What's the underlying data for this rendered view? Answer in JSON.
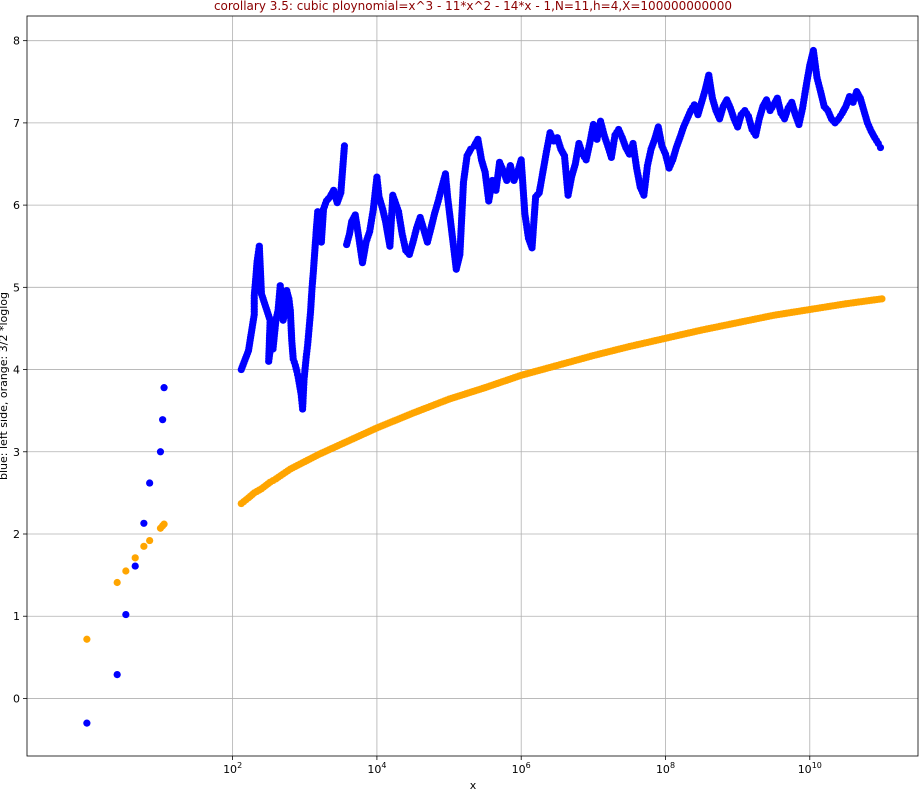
{
  "chart_data": {
    "type": "scatter",
    "title": "corollary 3.5: cubic ploynomial=x^3 - 11*x^2 - 14*x - 1,N=11,h=4,X=100000000000",
    "title_color": "#8b0000",
    "xlabel": "x",
    "ylabel": "blue: left side, orange: 3/2 *loglog",
    "xscale": "log",
    "xlim_log10": [
      -0.85,
      11.5
    ],
    "ylim": [
      -0.7,
      8.3
    ],
    "grid": true,
    "x_ticks": [
      {
        "log10": 2,
        "base": "10",
        "exp": "2"
      },
      {
        "log10": 4,
        "base": "10",
        "exp": "4"
      },
      {
        "log10": 6,
        "base": "10",
        "exp": "6"
      },
      {
        "log10": 8,
        "base": "10",
        "exp": "8"
      },
      {
        "log10": 10,
        "base": "10",
        "exp": "10"
      }
    ],
    "y_ticks": [
      "0",
      "1",
      "2",
      "3",
      "4",
      "5",
      "6",
      "7",
      "8"
    ],
    "series": [
      {
        "color": "#0000ff",
        "log10x_y": [
          [
            -0.02,
            -0.3
          ],
          [
            0.4,
            0.29
          ],
          [
            0.52,
            1.02
          ],
          [
            0.65,
            1.61
          ],
          [
            0.77,
            2.13
          ],
          [
            0.85,
            2.62
          ],
          [
            1.0,
            3.0
          ],
          [
            1.03,
            3.39
          ],
          [
            1.05,
            3.78
          ],
          [
            2.12,
            4.0
          ],
          [
            2.22,
            4.23
          ],
          [
            2.3,
            4.67
          ],
          [
            2.3,
            4.9
          ],
          [
            2.32,
            5.1
          ],
          [
            2.34,
            5.32
          ],
          [
            2.37,
            5.5
          ],
          [
            2.4,
            4.92
          ],
          [
            2.52,
            4.6
          ],
          [
            2.5,
            4.1
          ],
          [
            2.55,
            4.43
          ],
          [
            2.56,
            4.25
          ],
          [
            2.6,
            4.6
          ],
          [
            2.63,
            4.72
          ],
          [
            2.66,
            5.02
          ],
          [
            2.68,
            4.86
          ],
          [
            2.7,
            4.6
          ],
          [
            2.74,
            4.72
          ],
          [
            2.75,
            4.96
          ],
          [
            2.78,
            4.86
          ],
          [
            2.8,
            4.72
          ],
          [
            2.82,
            4.35
          ],
          [
            2.84,
            4.13
          ],
          [
            2.87,
            4.05
          ],
          [
            2.89,
            3.98
          ],
          [
            2.91,
            3.9
          ],
          [
            2.93,
            3.8
          ],
          [
            2.95,
            3.7
          ],
          [
            2.97,
            3.52
          ],
          [
            2.99,
            3.88
          ],
          [
            3.02,
            4.15
          ],
          [
            3.04,
            4.3
          ],
          [
            3.06,
            4.5
          ],
          [
            3.08,
            4.7
          ],
          [
            3.1,
            4.98
          ],
          [
            3.12,
            5.2
          ],
          [
            3.14,
            5.45
          ],
          [
            3.16,
            5.7
          ],
          [
            3.18,
            5.92
          ],
          [
            3.2,
            5.75
          ],
          [
            3.23,
            5.55
          ],
          [
            3.26,
            5.95
          ],
          [
            3.3,
            6.05
          ],
          [
            3.35,
            6.1
          ],
          [
            3.4,
            6.18
          ],
          [
            3.45,
            6.03
          ],
          [
            3.5,
            6.15
          ],
          [
            3.55,
            6.72
          ],
          [
            3.58,
            5.52
          ],
          [
            3.62,
            5.65
          ],
          [
            3.65,
            5.8
          ],
          [
            3.7,
            5.88
          ],
          [
            3.75,
            5.6
          ],
          [
            3.8,
            5.3
          ],
          [
            3.85,
            5.55
          ],
          [
            3.9,
            5.68
          ],
          [
            3.95,
            5.95
          ],
          [
            4.0,
            6.34
          ],
          [
            4.03,
            6.1
          ],
          [
            4.08,
            5.95
          ],
          [
            4.12,
            5.8
          ],
          [
            4.18,
            5.5
          ],
          [
            4.22,
            6.12
          ],
          [
            4.3,
            5.92
          ],
          [
            4.35,
            5.65
          ],
          [
            4.4,
            5.45
          ],
          [
            4.45,
            5.4
          ],
          [
            4.5,
            5.55
          ],
          [
            4.55,
            5.72
          ],
          [
            4.6,
            5.85
          ],
          [
            4.65,
            5.7
          ],
          [
            4.7,
            5.55
          ],
          [
            4.75,
            5.72
          ],
          [
            4.8,
            5.9
          ],
          [
            4.85,
            6.05
          ],
          [
            4.9,
            6.22
          ],
          [
            4.95,
            6.38
          ],
          [
            4.98,
            6.1
          ],
          [
            5.1,
            5.22
          ],
          [
            5.15,
            5.4
          ],
          [
            5.2,
            6.28
          ],
          [
            5.25,
            6.6
          ],
          [
            5.3,
            6.68
          ],
          [
            5.35,
            6.72
          ],
          [
            5.4,
            6.8
          ],
          [
            5.45,
            6.55
          ],
          [
            5.5,
            6.4
          ],
          [
            5.55,
            6.05
          ],
          [
            5.6,
            6.3
          ],
          [
            5.65,
            6.18
          ],
          [
            5.7,
            6.52
          ],
          [
            5.75,
            6.42
          ],
          [
            5.8,
            6.3
          ],
          [
            5.85,
            6.48
          ],
          [
            5.9,
            6.3
          ],
          [
            5.95,
            6.4
          ],
          [
            6.0,
            6.55
          ],
          [
            6.05,
            5.9
          ],
          [
            6.1,
            5.6
          ],
          [
            6.15,
            5.48
          ],
          [
            6.2,
            6.1
          ],
          [
            6.25,
            6.15
          ],
          [
            6.3,
            6.4
          ],
          [
            6.35,
            6.65
          ],
          [
            6.4,
            6.88
          ],
          [
            6.45,
            6.78
          ],
          [
            6.5,
            6.82
          ],
          [
            6.55,
            6.68
          ],
          [
            6.6,
            6.6
          ],
          [
            6.65,
            6.12
          ],
          [
            6.7,
            6.35
          ],
          [
            6.75,
            6.5
          ],
          [
            6.8,
            6.75
          ],
          [
            6.85,
            6.62
          ],
          [
            6.9,
            6.55
          ],
          [
            6.95,
            6.75
          ],
          [
            7.0,
            6.98
          ],
          [
            7.05,
            6.8
          ],
          [
            7.1,
            7.02
          ],
          [
            7.15,
            6.85
          ],
          [
            7.2,
            6.72
          ],
          [
            7.25,
            6.58
          ],
          [
            7.3,
            6.85
          ],
          [
            7.35,
            6.92
          ],
          [
            7.4,
            6.82
          ],
          [
            7.45,
            6.7
          ],
          [
            7.5,
            6.62
          ],
          [
            7.55,
            6.75
          ],
          [
            7.6,
            6.45
          ],
          [
            7.65,
            6.22
          ],
          [
            7.7,
            6.12
          ],
          [
            7.75,
            6.48
          ],
          [
            7.8,
            6.68
          ],
          [
            7.85,
            6.8
          ],
          [
            7.9,
            6.95
          ],
          [
            7.95,
            6.72
          ],
          [
            8.0,
            6.62
          ],
          [
            8.05,
            6.45
          ],
          [
            8.1,
            6.55
          ],
          [
            8.15,
            6.7
          ],
          [
            8.2,
            6.82
          ],
          [
            8.25,
            6.95
          ],
          [
            8.3,
            7.05
          ],
          [
            8.35,
            7.15
          ],
          [
            8.4,
            7.22
          ],
          [
            8.45,
            7.1
          ],
          [
            8.5,
            7.25
          ],
          [
            8.55,
            7.4
          ],
          [
            8.6,
            7.58
          ],
          [
            8.65,
            7.3
          ],
          [
            8.7,
            7.15
          ],
          [
            8.75,
            7.05
          ],
          [
            8.8,
            7.2
          ],
          [
            8.85,
            7.28
          ],
          [
            8.9,
            7.18
          ],
          [
            8.95,
            7.05
          ],
          [
            9.0,
            6.95
          ],
          [
            9.05,
            7.1
          ],
          [
            9.1,
            7.15
          ],
          [
            9.15,
            7.08
          ],
          [
            9.2,
            6.92
          ],
          [
            9.25,
            6.85
          ],
          [
            9.3,
            7.05
          ],
          [
            9.35,
            7.2
          ],
          [
            9.4,
            7.28
          ],
          [
            9.45,
            7.15
          ],
          [
            9.5,
            7.22
          ],
          [
            9.55,
            7.3
          ],
          [
            9.6,
            7.12
          ],
          [
            9.65,
            7.05
          ],
          [
            9.7,
            7.18
          ],
          [
            9.75,
            7.25
          ],
          [
            9.8,
            7.1
          ],
          [
            9.85,
            6.98
          ],
          [
            9.9,
            7.18
          ],
          [
            9.95,
            7.45
          ],
          [
            10.0,
            7.7
          ],
          [
            10.05,
            7.88
          ],
          [
            10.1,
            7.55
          ],
          [
            10.15,
            7.38
          ],
          [
            10.2,
            7.2
          ],
          [
            10.25,
            7.15
          ],
          [
            10.3,
            7.05
          ],
          [
            10.35,
            7.0
          ],
          [
            10.4,
            7.05
          ],
          [
            10.45,
            7.12
          ],
          [
            10.5,
            7.2
          ],
          [
            10.55,
            7.32
          ],
          [
            10.6,
            7.25
          ],
          [
            10.65,
            7.38
          ],
          [
            10.7,
            7.3
          ],
          [
            10.75,
            7.15
          ],
          [
            10.8,
            7.0
          ],
          [
            10.85,
            6.9
          ],
          [
            10.9,
            6.82
          ],
          [
            10.95,
            6.75
          ],
          [
            10.98,
            6.7
          ]
        ]
      },
      {
        "color": "#ffa500",
        "log10x_y": [
          [
            -0.02,
            0.72
          ],
          [
            0.4,
            1.41
          ],
          [
            0.52,
            1.55
          ],
          [
            0.65,
            1.71
          ],
          [
            0.77,
            1.85
          ],
          [
            0.85,
            1.92
          ],
          [
            1.0,
            2.07
          ],
          [
            1.03,
            2.1
          ],
          [
            1.05,
            2.12
          ],
          [
            2.12,
            2.37
          ],
          [
            2.22,
            2.44
          ],
          [
            2.3,
            2.5
          ],
          [
            2.4,
            2.55
          ],
          [
            2.52,
            2.63
          ],
          [
            2.6,
            2.67
          ],
          [
            2.7,
            2.73
          ],
          [
            2.8,
            2.79
          ],
          [
            3.0,
            2.88
          ],
          [
            3.2,
            2.97
          ],
          [
            3.5,
            3.09
          ],
          [
            4.0,
            3.29
          ],
          [
            4.5,
            3.47
          ],
          [
            5.0,
            3.64
          ],
          [
            5.5,
            3.78
          ],
          [
            6.0,
            3.93
          ],
          [
            6.5,
            4.05
          ],
          [
            7.0,
            4.17
          ],
          [
            7.5,
            4.28
          ],
          [
            8.0,
            4.38
          ],
          [
            8.5,
            4.48
          ],
          [
            9.0,
            4.57
          ],
          [
            9.5,
            4.66
          ],
          [
            10.0,
            4.73
          ],
          [
            10.5,
            4.8
          ],
          [
            11.0,
            4.86
          ]
        ]
      }
    ]
  }
}
